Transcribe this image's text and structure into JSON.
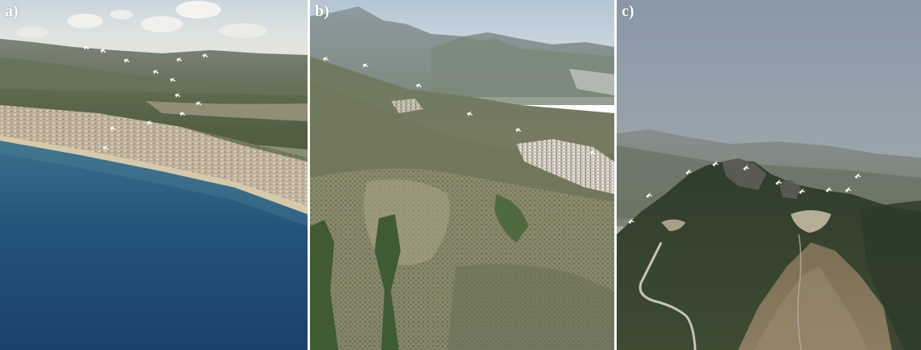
{
  "figure": {
    "panels": [
      {
        "id": "a",
        "label": "a)"
      },
      {
        "id": "b",
        "label": "b)"
      },
      {
        "id": "c",
        "label": "c)"
      }
    ]
  },
  "colors": {
    "label": "#ffffff",
    "arrow": "#ffffff"
  }
}
